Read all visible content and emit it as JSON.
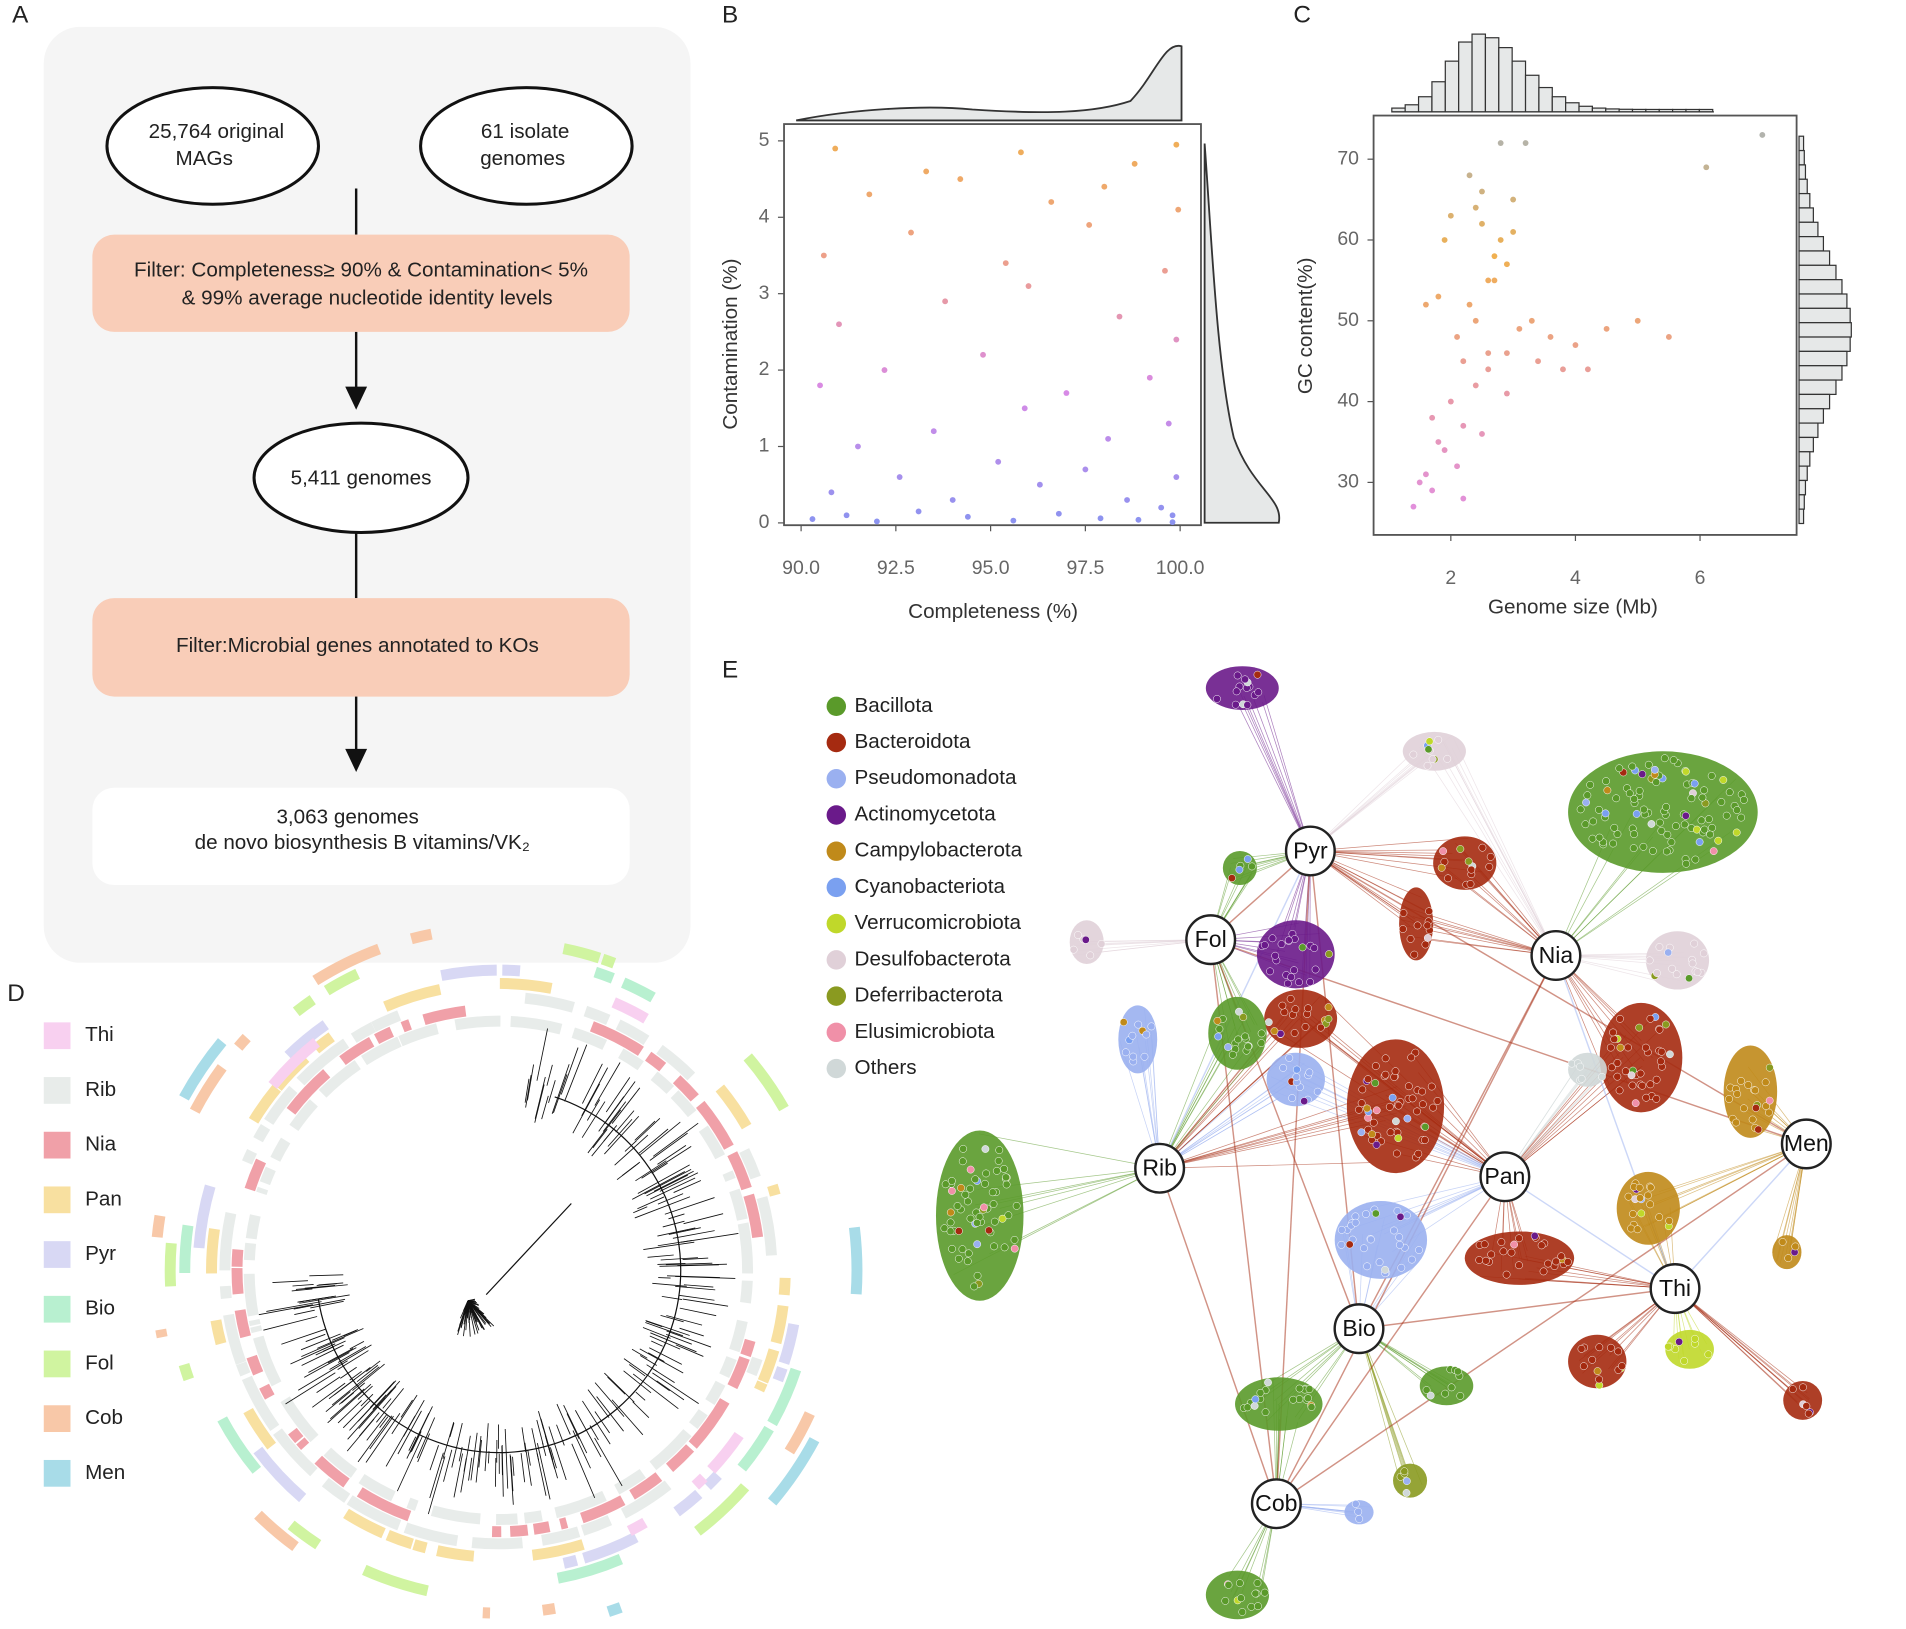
{
  "panel_labels": [
    "A",
    "B",
    "C",
    "D",
    "E"
  ],
  "flowchart": {
    "sources": [
      {
        "lines": [
          "25,764 original",
          "MAGs"
        ]
      },
      {
        "lines": [
          "61 isolate",
          "genomes"
        ]
      }
    ],
    "filter_1": [
      "Filter: Completeness≥ 90% & Contamination< 5%",
      "& 99% average nucleotide identity levels"
    ],
    "intermediate": "5,411 genomes",
    "filter_2": "Filter:Microbial genes annotated to KOs",
    "result": [
      "3,063 genomes",
      "de novo biosynthesis B vitamins/VK₂"
    ]
  },
  "chart_data": [
    {
      "type": "scatter",
      "x_label": "Completeness (%)",
      "y_label": "Contamination (%)",
      "xlim": [
        89.55,
        100.55
      ],
      "ylim": [
        -0.03,
        5.22
      ],
      "xticks": [
        {
          "value": 90,
          "label": "90.0"
        },
        92.5,
        {
          "value": 95,
          "label": "95.0"
        },
        97.5,
        {
          "value": 100,
          "label": "100.0"
        }
      ],
      "yticks": [
        0,
        1,
        2,
        3,
        4,
        5
      ],
      "colors": [
        "#8a93f0",
        "#d88ae6",
        "#eda08a",
        "#f0b050"
      ],
      "x": [
        90.3,
        91.2,
        92.0,
        93.1,
        94.4,
        95.6,
        96.8,
        97.9,
        98.9,
        99.8,
        90.8,
        92.6,
        94.0,
        95.2,
        96.3,
        97.5,
        98.6,
        99.5,
        99.9,
        91.5,
        93.5,
        95.9,
        98.1,
        99.7,
        90.5,
        92.2,
        94.8,
        97.0,
        99.2,
        99.9,
        91.0,
        93.8,
        96.0,
        98.4,
        99.6,
        90.6,
        92.9,
        95.4,
        97.6,
        99.95,
        91.8,
        94.2,
        96.6,
        98.8,
        99.9,
        90.9,
        93.3,
        95.8,
        98.0,
        99.8
      ],
      "values": [
        0.05,
        0.1,
        0.02,
        0.15,
        0.08,
        0.03,
        0.12,
        0.06,
        0.04,
        0.1,
        0.4,
        0.6,
        0.3,
        0.8,
        0.5,
        0.7,
        0.3,
        0.2,
        0.6,
        1.0,
        1.2,
        1.5,
        1.1,
        1.3,
        1.8,
        2.0,
        2.2,
        1.7,
        1.9,
        2.4,
        2.6,
        2.9,
        3.1,
        2.7,
        3.3,
        3.5,
        3.8,
        3.4,
        3.9,
        4.1,
        4.3,
        4.5,
        4.2,
        4.7,
        4.95,
        4.9,
        4.6,
        4.85,
        4.4,
        0.01
      ]
    },
    {
      "type": "scatter",
      "x_label": "Genome size (Mb)",
      "y_label": "GC content(%)",
      "xlim": [
        0.76,
        7.55
      ],
      "ylim": [
        23.5,
        75.4
      ],
      "xticks": [
        2,
        4,
        6
      ],
      "yticks": [
        30,
        40,
        50,
        60,
        70
      ],
      "colors": [
        "#e08ee8",
        "#e89aa8",
        "#f0b050",
        "#a8b4bc"
      ],
      "x": [
        1.5,
        1.8,
        2.0,
        2.2,
        2.4,
        2.6,
        2.8,
        3.0,
        1.7,
        2.1,
        2.3,
        2.5,
        2.7,
        2.9,
        3.3,
        3.6,
        4.0,
        4.5,
        5.0,
        5.5,
        1.6,
        1.9,
        2.2,
        2.4,
        2.6,
        2.5,
        2.3,
        2.0,
        1.8,
        1.6,
        2.7,
        2.9,
        3.1,
        3.4,
        3.8,
        4.2,
        6.1,
        7.0,
        2.8,
        3.2,
        1.4,
        1.7,
        2.1,
        2.5,
        2.9,
        1.9,
        2.4,
        3.0,
        2.6,
        2.2
      ],
      "values": [
        30,
        35,
        40,
        45,
        50,
        55,
        60,
        65,
        38,
        48,
        52,
        62,
        58,
        46,
        50,
        48,
        47,
        49,
        50,
        48,
        31,
        34,
        37,
        42,
        44,
        66,
        68,
        63,
        53,
        52,
        55,
        57,
        49,
        45,
        44,
        44,
        69,
        73,
        72,
        72,
        27,
        29,
        32,
        36,
        41,
        60,
        64,
        61,
        46,
        28
      ]
    }
  ],
  "tree_legend": {
    "items": [
      {
        "label": "Thi",
        "color": "#f8d0f0"
      },
      {
        "label": "Rib",
        "color": "#e8ecea"
      },
      {
        "label": "Nia",
        "color": "#f0a0a8"
      },
      {
        "label": "Pan",
        "color": "#f8e0a0"
      },
      {
        "label": "Pyr",
        "color": "#d8d8f4"
      },
      {
        "label": "Bio",
        "color": "#b8f0d0"
      },
      {
        "label": "Fol",
        "color": "#d0f4a0"
      },
      {
        "label": "Cob",
        "color": "#f8c8a8"
      },
      {
        "label": "Men",
        "color": "#a8dce8"
      }
    ]
  },
  "network": {
    "legend": [
      {
        "name": "Bacillota",
        "color": "#5a9a2a"
      },
      {
        "name": "Bacteroidota",
        "color": "#a52a10"
      },
      {
        "name": "Pseudomonadota",
        "color": "#9ab0f0"
      },
      {
        "name": "Actinomycetota",
        "color": "#6a1a8a"
      },
      {
        "name": "Campylobacterota",
        "color": "#c08a1a"
      },
      {
        "name": "Cyanobacteriota",
        "color": "#7aa0f0"
      },
      {
        "name": "Verrucomicrobiota",
        "color": "#c0d82a"
      },
      {
        "name": "Desulfobacterota",
        "color": "#e0d0d8"
      },
      {
        "name": "Deferribacterota",
        "color": "#8a9a20"
      },
      {
        "name": "Elusimicrobiota",
        "color": "#f090a8"
      },
      {
        "name": "Others",
        "color": "#d0d8d8"
      }
    ],
    "hubs": [
      "Pyr",
      "Fol",
      "Nia",
      "Rib",
      "Pan",
      "Men",
      "Thi",
      "Bio",
      "Cob"
    ]
  }
}
